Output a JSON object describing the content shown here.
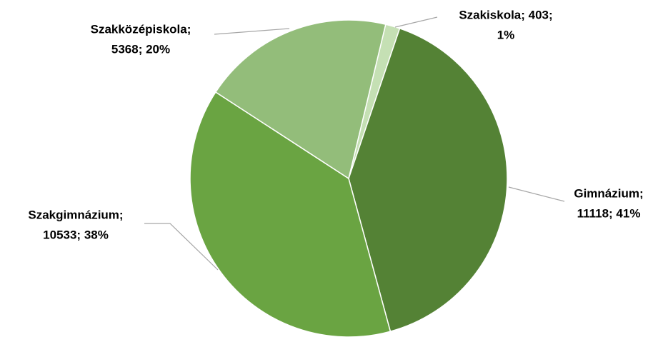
{
  "chart_data": {
    "type": "pie",
    "values": [
      403,
      11118,
      10533,
      5368
    ],
    "value_labels": [
      [
        "Szakiskola; 403;",
        "1%"
      ],
      [
        "Gimnázium;",
        "11118; 41%"
      ],
      [
        "Szakgimnázium;",
        "10533; 38%"
      ],
      [
        "Szakközépiskola;",
        "5368; 20%"
      ]
    ],
    "colors": [
      "#c5e0b4",
      "#548235",
      "#6aa442",
      "#93bd7a"
    ]
  }
}
